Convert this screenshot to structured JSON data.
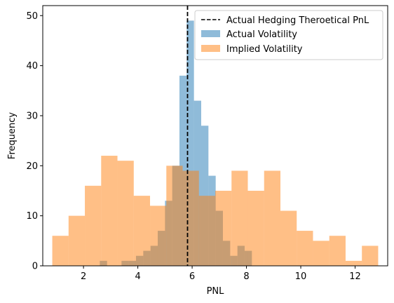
{
  "chart_data": {
    "type": "histogram",
    "xlabel": "PNL",
    "ylabel": "Frequency",
    "xlim": [
      0.5,
      13.2
    ],
    "ylim": [
      0,
      52
    ],
    "xticks": [
      2,
      4,
      6,
      8,
      10,
      12
    ],
    "yticks": [
      0,
      10,
      20,
      30,
      40,
      50
    ],
    "reference_line": {
      "label": "Actual Hedging Theroetical PnL",
      "x": 5.83,
      "color": "#000000",
      "style": "dashed"
    },
    "series": [
      {
        "name": "Actual Volatility",
        "color": "#1f77b4",
        "alpha": 0.5,
        "bins": [
          [
            2.6,
            2.867,
            1
          ],
          [
            2.867,
            3.133,
            0
          ],
          [
            3.133,
            3.4,
            0
          ],
          [
            3.4,
            3.667,
            1
          ],
          [
            3.667,
            3.933,
            1
          ],
          [
            3.933,
            4.2,
            2
          ],
          [
            4.2,
            4.467,
            3
          ],
          [
            4.467,
            4.733,
            4
          ],
          [
            4.733,
            5.0,
            7
          ],
          [
            5.0,
            5.267,
            13
          ],
          [
            5.267,
            5.533,
            20
          ],
          [
            5.533,
            5.8,
            38
          ],
          [
            5.8,
            6.067,
            49
          ],
          [
            6.067,
            6.333,
            33
          ],
          [
            6.333,
            6.6,
            28
          ],
          [
            6.6,
            6.867,
            18
          ],
          [
            6.867,
            7.133,
            11
          ],
          [
            7.133,
            7.4,
            5
          ],
          [
            7.4,
            7.667,
            2
          ],
          [
            7.667,
            7.933,
            4
          ],
          [
            7.933,
            8.2,
            3
          ]
        ]
      },
      {
        "name": "Implied Volatility",
        "color": "#ff7f0e",
        "alpha": 0.5,
        "bins": [
          [
            0.85,
            1.45,
            6
          ],
          [
            1.45,
            2.05,
            10
          ],
          [
            2.05,
            2.65,
            16
          ],
          [
            2.65,
            3.25,
            22
          ],
          [
            3.25,
            3.85,
            21
          ],
          [
            3.85,
            4.45,
            14
          ],
          [
            4.45,
            5.05,
            12
          ],
          [
            5.05,
            5.65,
            20
          ],
          [
            5.65,
            6.25,
            19
          ],
          [
            6.25,
            6.85,
            14
          ],
          [
            6.85,
            7.45,
            15
          ],
          [
            7.45,
            8.05,
            19
          ],
          [
            8.05,
            8.65,
            15
          ],
          [
            8.65,
            9.25,
            19
          ],
          [
            9.25,
            9.85,
            11
          ],
          [
            9.85,
            10.45,
            7
          ],
          [
            10.45,
            11.05,
            5
          ],
          [
            11.05,
            11.65,
            6
          ],
          [
            11.65,
            12.25,
            1
          ],
          [
            12.25,
            12.85,
            4
          ]
        ]
      }
    ],
    "legend": {
      "placement": "top-right"
    }
  }
}
